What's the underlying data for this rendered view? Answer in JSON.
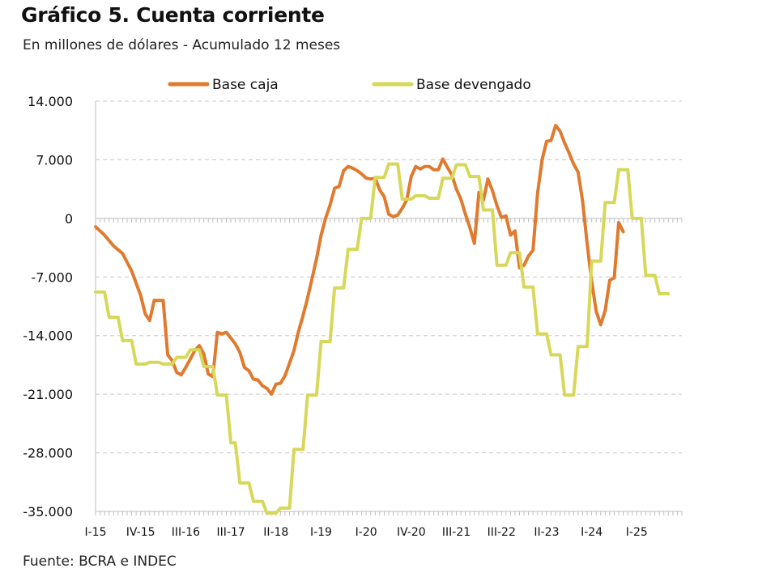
{
  "chart_data": {
    "type": "line",
    "title": "Gráfico 5. Cuenta corriente",
    "subtitle": "En millones de dólares - Acumulado 12 meses",
    "source": "Fuente: BCRA  e INDEC",
    "ylim": [
      -35000,
      14000
    ],
    "y_ticks": [
      14000,
      7000,
      0,
      -7000,
      -14000,
      -21000,
      -28000,
      -35000
    ],
    "y_tick_labels": [
      "14.000",
      "7.000",
      "0",
      "-7.000",
      "-14.000",
      "-21.000",
      "-28.000",
      "-35.000"
    ],
    "x_range": [
      0,
      130
    ],
    "x_ticks": [
      {
        "label": "I-15",
        "x": 0
      },
      {
        "label": "IV-15",
        "x": 10
      },
      {
        "label": "III-16",
        "x": 20
      },
      {
        "label": "III-17",
        "x": 30
      },
      {
        "label": "II-18",
        "x": 40
      },
      {
        "label": "I-19",
        "x": 50
      },
      {
        "label": "I-20",
        "x": 60
      },
      {
        "label": "IV-20",
        "x": 70
      },
      {
        "label": "III-21",
        "x": 80
      },
      {
        "label": "III-22",
        "x": 90
      },
      {
        "label": "II-23",
        "x": 100
      },
      {
        "label": "I-24",
        "x": 110
      },
      {
        "label": "I-25",
        "x": 120
      }
    ],
    "series": [
      {
        "name": "Base caja",
        "color": "#E07A2E",
        "points": [
          [
            0,
            -1000
          ],
          [
            2,
            -2000
          ],
          [
            4,
            -3300
          ],
          [
            6,
            -4200
          ],
          [
            8,
            -6300
          ],
          [
            10,
            -9200
          ],
          [
            11,
            -11400
          ],
          [
            12,
            -12200
          ],
          [
            13,
            -9800
          ],
          [
            14,
            -9800
          ],
          [
            15,
            -9800
          ],
          [
            16,
            -16300
          ],
          [
            17,
            -17000
          ],
          [
            18,
            -18400
          ],
          [
            19,
            -18700
          ],
          [
            20,
            -17800
          ],
          [
            21,
            -16800
          ],
          [
            22,
            -15800
          ],
          [
            23,
            -15200
          ],
          [
            24,
            -16200
          ],
          [
            25,
            -18600
          ],
          [
            26,
            -18900
          ],
          [
            27,
            -13600
          ],
          [
            28,
            -13800
          ],
          [
            29,
            -13600
          ],
          [
            30,
            -14300
          ],
          [
            31,
            -15000
          ],
          [
            32,
            -16000
          ],
          [
            33,
            -17800
          ],
          [
            34,
            -18200
          ],
          [
            35,
            -19200
          ],
          [
            36,
            -19300
          ],
          [
            37,
            -20000
          ],
          [
            38,
            -20300
          ],
          [
            39,
            -21000
          ],
          [
            40,
            -19800
          ],
          [
            41,
            -19700
          ],
          [
            42,
            -18800
          ],
          [
            43,
            -17300
          ],
          [
            44,
            -15800
          ],
          [
            45,
            -13500
          ],
          [
            46,
            -11600
          ],
          [
            47,
            -9500
          ],
          [
            48,
            -7200
          ],
          [
            49,
            -4800
          ],
          [
            50,
            -2000
          ],
          [
            51,
            0
          ],
          [
            52,
            1600
          ],
          [
            53,
            3600
          ],
          [
            54,
            3800
          ],
          [
            55,
            5700
          ],
          [
            56,
            6200
          ],
          [
            57,
            6000
          ],
          [
            58,
            5700
          ],
          [
            59,
            5300
          ],
          [
            60,
            4800
          ],
          [
            61,
            4700
          ],
          [
            62,
            4800
          ],
          [
            63,
            3400
          ],
          [
            64,
            2600
          ],
          [
            65,
            500
          ],
          [
            66,
            200
          ],
          [
            67,
            400
          ],
          [
            68,
            1200
          ],
          [
            69,
            2200
          ],
          [
            70,
            5000
          ],
          [
            71,
            6200
          ],
          [
            72,
            5900
          ],
          [
            73,
            6200
          ],
          [
            74,
            6200
          ],
          [
            75,
            5800
          ],
          [
            76,
            5800
          ],
          [
            77,
            7100
          ],
          [
            78,
            6100
          ],
          [
            79,
            5200
          ],
          [
            80,
            3500
          ],
          [
            81,
            2300
          ],
          [
            82,
            500
          ],
          [
            83,
            -1100
          ],
          [
            84,
            -3000
          ],
          [
            85,
            3100
          ],
          [
            86,
            2200
          ],
          [
            87,
            4700
          ],
          [
            88,
            3300
          ],
          [
            89,
            1500
          ],
          [
            90,
            100
          ],
          [
            91,
            300
          ],
          [
            92,
            -2000
          ],
          [
            93,
            -1500
          ],
          [
            94,
            -5900
          ],
          [
            95,
            -5600
          ],
          [
            96,
            -4500
          ],
          [
            97,
            -3800
          ],
          [
            98,
            3000
          ],
          [
            99,
            7000
          ],
          [
            100,
            9200
          ],
          [
            101,
            9300
          ],
          [
            102,
            11100
          ],
          [
            103,
            10400
          ],
          [
            104,
            9000
          ],
          [
            105,
            7800
          ],
          [
            106,
            6500
          ],
          [
            107,
            5500
          ],
          [
            108,
            2000
          ],
          [
            109,
            -3000
          ],
          [
            110,
            -7500
          ],
          [
            111,
            -11100
          ],
          [
            112,
            -12700
          ],
          [
            113,
            -11000
          ],
          [
            114,
            -7400
          ],
          [
            115,
            -7100
          ],
          [
            116,
            -500
          ],
          [
            117,
            -1600
          ]
        ]
      },
      {
        "name": "Base devengado",
        "color": "#D7D85A",
        "points": [
          [
            0,
            -8800
          ],
          [
            2,
            -8800
          ],
          [
            3,
            -11800
          ],
          [
            5,
            -11800
          ],
          [
            6,
            -14600
          ],
          [
            8,
            -14600
          ],
          [
            9,
            -17400
          ],
          [
            11,
            -17400
          ],
          [
            12,
            -17200
          ],
          [
            14,
            -17200
          ],
          [
            15,
            -17400
          ],
          [
            17,
            -17400
          ],
          [
            18,
            -16600
          ],
          [
            20,
            -16600
          ],
          [
            21,
            -15700
          ],
          [
            23,
            -15700
          ],
          [
            24,
            -17700
          ],
          [
            26,
            -17700
          ],
          [
            27,
            -21100
          ],
          [
            29,
            -21100
          ],
          [
            30,
            -26800
          ],
          [
            31,
            -26800
          ],
          [
            32,
            -31600
          ],
          [
            34,
            -31600
          ],
          [
            35,
            -33800
          ],
          [
            37,
            -33800
          ],
          [
            38,
            -35200
          ],
          [
            40,
            -35200
          ],
          [
            41,
            -34600
          ],
          [
            43,
            -34600
          ],
          [
            44,
            -27600
          ],
          [
            46,
            -27600
          ],
          [
            47,
            -21100
          ],
          [
            49,
            -21100
          ],
          [
            50,
            -14700
          ],
          [
            52,
            -14700
          ],
          [
            53,
            -8300
          ],
          [
            55,
            -8300
          ],
          [
            56,
            -3700
          ],
          [
            58,
            -3700
          ],
          [
            59,
            0
          ],
          [
            61,
            0
          ],
          [
            62,
            4900
          ],
          [
            64,
            4900
          ],
          [
            65,
            6500
          ],
          [
            67,
            6500
          ],
          [
            68,
            2300
          ],
          [
            70,
            2300
          ],
          [
            71,
            2700
          ],
          [
            73,
            2700
          ],
          [
            74,
            2400
          ],
          [
            76,
            2400
          ],
          [
            77,
            4800
          ],
          [
            79,
            4800
          ],
          [
            80,
            6400
          ],
          [
            82,
            6400
          ],
          [
            83,
            5000
          ],
          [
            85,
            5000
          ],
          [
            86,
            1000
          ],
          [
            88,
            1000
          ],
          [
            89,
            -5600
          ],
          [
            91,
            -5600
          ],
          [
            92,
            -4100
          ],
          [
            94,
            -4100
          ],
          [
            95,
            -8200
          ],
          [
            97,
            -8200
          ],
          [
            98,
            -13800
          ],
          [
            100,
            -13800
          ],
          [
            101,
            -16300
          ],
          [
            103,
            -16300
          ],
          [
            104,
            -21100
          ],
          [
            106,
            -21100
          ],
          [
            107,
            -15300
          ],
          [
            109,
            -15300
          ],
          [
            110,
            -5100
          ],
          [
            112,
            -5100
          ],
          [
            113,
            1900
          ],
          [
            115,
            1900
          ],
          [
            116,
            5800
          ],
          [
            118,
            5800
          ],
          [
            119,
            0
          ],
          [
            121,
            0
          ],
          [
            122,
            -6800
          ],
          [
            124,
            -6800
          ],
          [
            125,
            -9000
          ],
          [
            127,
            -9000
          ]
        ]
      }
    ]
  }
}
